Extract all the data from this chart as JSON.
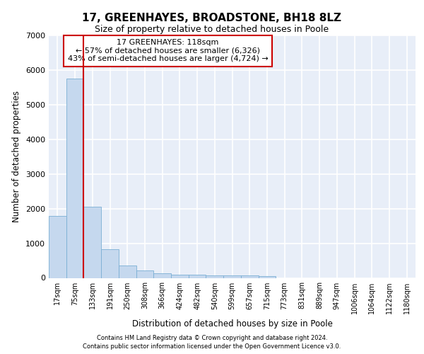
{
  "title1": "17, GREENHAYES, BROADSTONE, BH18 8LZ",
  "title2": "Size of property relative to detached houses in Poole",
  "xlabel": "Distribution of detached houses by size in Poole",
  "ylabel": "Number of detached properties",
  "annotation_line1": "17 GREENHAYES: 118sqm",
  "annotation_line2": "← 57% of detached houses are smaller (6,326)",
  "annotation_line3": "43% of semi-detached houses are larger (4,724) →",
  "bin_labels": [
    "17sqm",
    "75sqm",
    "133sqm",
    "191sqm",
    "250sqm",
    "308sqm",
    "366sqm",
    "424sqm",
    "482sqm",
    "540sqm",
    "599sqm",
    "657sqm",
    "715sqm",
    "773sqm",
    "831sqm",
    "889sqm",
    "947sqm",
    "1006sqm",
    "1064sqm",
    "1122sqm",
    "1180sqm"
  ],
  "bar_values": [
    1780,
    5750,
    2060,
    820,
    360,
    220,
    130,
    100,
    90,
    80,
    70,
    65,
    60,
    0,
    0,
    0,
    0,
    0,
    0,
    0,
    0
  ],
  "bar_color": "#c5d8ee",
  "bar_edge_color": "#7aafd4",
  "vline_color": "#cc0000",
  "vline_x": 1.5,
  "ylim": [
    0,
    7000
  ],
  "yticks": [
    0,
    1000,
    2000,
    3000,
    4000,
    5000,
    6000,
    7000
  ],
  "background_color": "#e8eef8",
  "grid_color": "#ffffff",
  "annotation_box_color": "#ffffff",
  "annotation_box_edge": "#cc0000",
  "footer_line1": "Contains HM Land Registry data © Crown copyright and database right 2024.",
  "footer_line2": "Contains public sector information licensed under the Open Government Licence v3.0."
}
